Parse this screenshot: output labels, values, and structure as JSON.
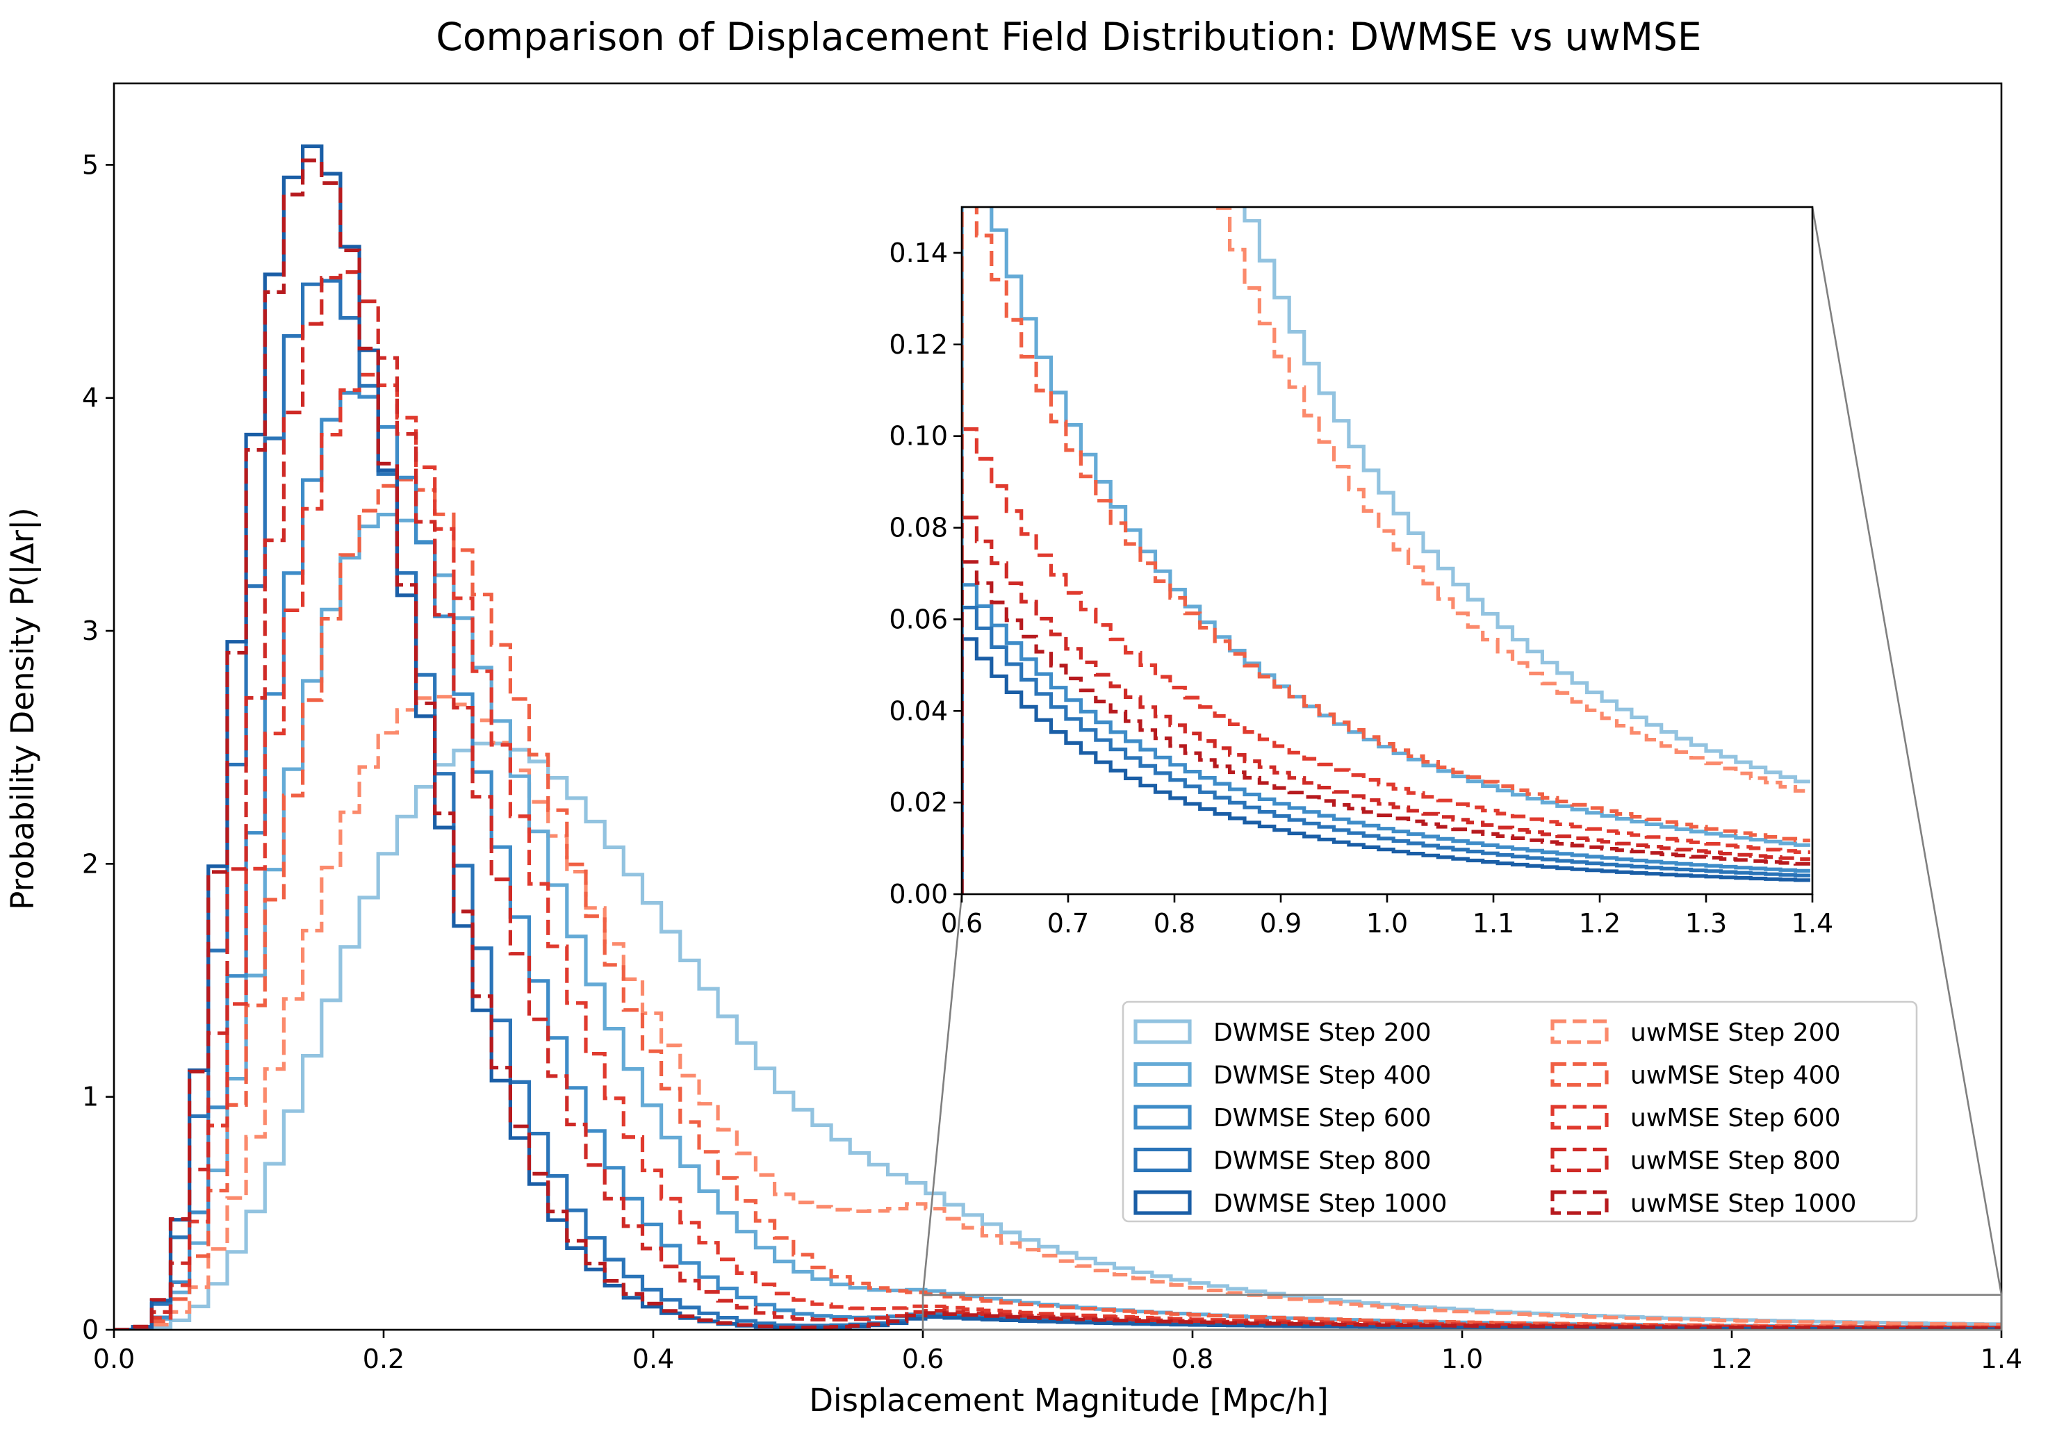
{
  "chart_data": {
    "type": "step-histogram",
    "title": "Comparison of Displacement Field Distribution: DWMSE vs uwMSE",
    "xlabel": "Displacement Magnitude  [Mpc/h]",
    "ylabel": "Probability Density P(|Δr|)",
    "xlim": [
      0,
      1.4
    ],
    "ylim": [
      0,
      5.35
    ],
    "xticks": [
      "0.0",
      "0.2",
      "0.4",
      "0.6",
      "0.8",
      "1.0",
      "1.2",
      "1.4"
    ],
    "yticks": [
      "0",
      "1",
      "2",
      "3",
      "4",
      "5"
    ],
    "bin_width": 0.014,
    "legend_position": "lower-right (inside)",
    "inset": {
      "xlim": [
        0.6,
        1.4
      ],
      "ylim": [
        0,
        0.15
      ],
      "xticks": [
        "0.6",
        "0.7",
        "0.8",
        "0.9",
        "1.0",
        "1.1",
        "1.2",
        "1.3",
        "1.4"
      ],
      "yticks": [
        "0.00",
        "0.02",
        "0.04",
        "0.06",
        "0.08",
        "0.10",
        "0.12",
        "0.14"
      ],
      "connector_color": "#808080"
    },
    "series": [
      {
        "name": "DWMSE Step 200",
        "color": "#92c3e0",
        "dash": "solid",
        "peak_x": 0.28,
        "peak_y": 2.52,
        "shape_k": 4.5,
        "tail_at_0_6": 0.62,
        "tail_at_1_4": 0.024
      },
      {
        "name": "DWMSE Step 400",
        "color": "#64aad6",
        "dash": "solid",
        "peak_x": 0.205,
        "peak_y": 3.5,
        "shape_k": 4.6,
        "tail_at_0_6": 0.175,
        "tail_at_1_4": 0.0105
      },
      {
        "name": "DWMSE Step 600",
        "color": "#3e8cc8",
        "dash": "solid",
        "peak_x": 0.18,
        "peak_y": 4.03,
        "shape_k": 5.2,
        "tail_at_0_6": 0.07,
        "tail_at_1_4": 0.005
      },
      {
        "name": "DWMSE Step 800",
        "color": "#2a74b8",
        "dash": "solid",
        "peak_x": 0.155,
        "peak_y": 4.52,
        "shape_k": 5.2,
        "tail_at_0_6": 0.065,
        "tail_at_1_4": 0.004
      },
      {
        "name": "DWMSE Step 1000",
        "color": "#1a5ea6",
        "dash": "solid",
        "peak_x": 0.147,
        "peak_y": 5.08,
        "shape_k": 5.5,
        "tail_at_0_6": 0.058,
        "tail_at_1_4": 0.003
      },
      {
        "name": "uwMSE Step 200",
        "color": "#fb8a6c",
        "dash": "dashed",
        "peak_x": 0.24,
        "peak_y": 2.72,
        "shape_k": 4.5,
        "tail_at_0_6": 0.55,
        "tail_at_1_4": 0.022
      },
      {
        "name": "uwMSE Step 400",
        "color": "#f06044",
        "dash": "dashed",
        "peak_x": 0.215,
        "peak_y": 3.65,
        "shape_k": 4.7,
        "tail_at_0_6": 0.16,
        "tail_at_1_4": 0.0115
      },
      {
        "name": "uwMSE Step 600",
        "color": "#e03a2e",
        "dash": "dashed",
        "peak_x": 0.19,
        "peak_y": 4.1,
        "shape_k": 5.0,
        "tail_at_0_6": 0.105,
        "tail_at_1_4": 0.009
      },
      {
        "name": "uwMSE Step 800",
        "color": "#cf2a26",
        "dash": "dashed",
        "peak_x": 0.17,
        "peak_y": 4.55,
        "shape_k": 5.2,
        "tail_at_0_6": 0.085,
        "tail_at_1_4": 0.0075
      },
      {
        "name": "uwMSE Step 1000",
        "color": "#b71a1e",
        "dash": "dashed",
        "peak_x": 0.148,
        "peak_y": 5.02,
        "shape_k": 5.4,
        "tail_at_0_6": 0.075,
        "tail_at_1_4": 0.0065
      }
    ]
  }
}
